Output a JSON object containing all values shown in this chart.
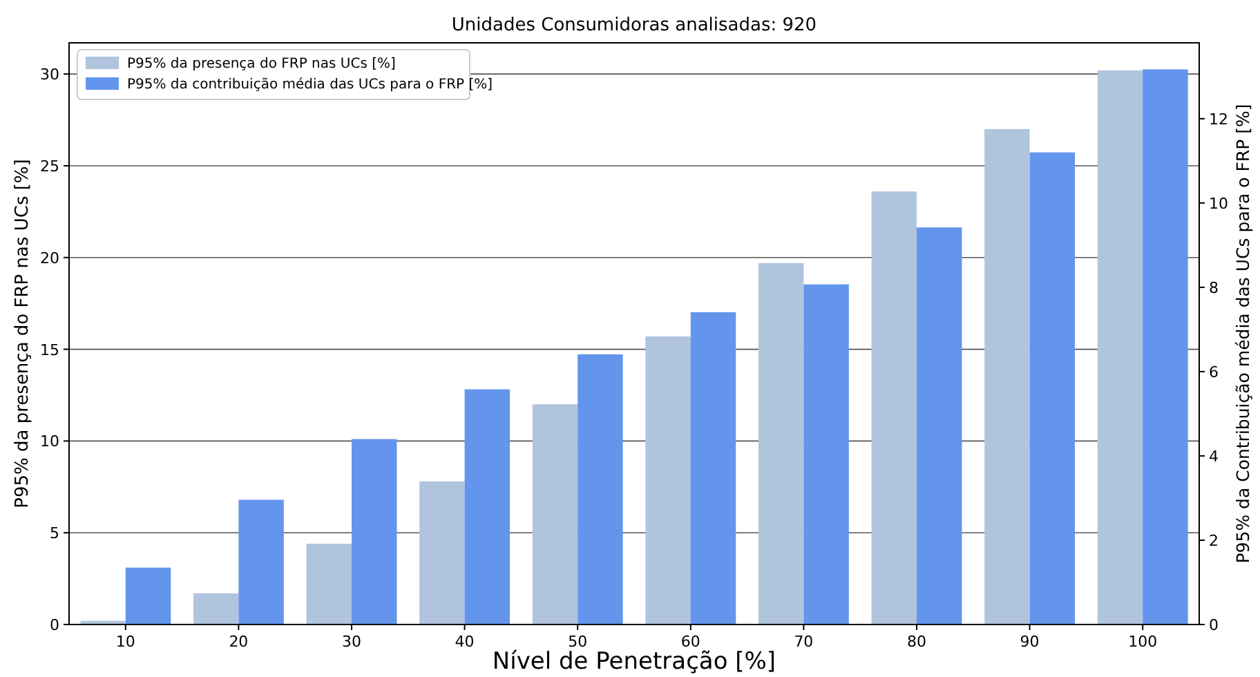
{
  "chart_data": {
    "type": "bar",
    "title": "Unidades Consumidoras analisadas: 920",
    "xlabel": "Nível de Penetração [%]",
    "ylabel": "P95% da presença do FRP nas UCs [%]",
    "y2label": "P95% da Contribuição média das UCs para o FRP [%]",
    "categories": [
      "10",
      "20",
      "30",
      "40",
      "50",
      "60",
      "70",
      "80",
      "90",
      "100"
    ],
    "series": [
      {
        "name": "P95% da presença do FRP nas UCs [%]",
        "color": "#b0c4de",
        "values": [
          0.2,
          1.7,
          4.4,
          7.8,
          12.0,
          15.7,
          19.7,
          23.6,
          27.0,
          30.2
        ]
      },
      {
        "name": "P95% da contribuição média das UCs para o FRP [%]",
        "color": "#6495ed",
        "axis": "y2",
        "values": [
          1.35,
          2.96,
          4.4,
          5.58,
          6.41,
          7.41,
          8.07,
          9.42,
          11.2,
          13.17
        ]
      }
    ],
    "ylim": [
      0,
      31.7
    ],
    "yticks": [
      0,
      5,
      10,
      15,
      20,
      25,
      30
    ],
    "y2lim": [
      0,
      13.8
    ],
    "y2ticks": [
      0,
      2,
      4,
      6,
      8,
      10,
      12
    ],
    "grid": "y",
    "legend": "top left"
  }
}
